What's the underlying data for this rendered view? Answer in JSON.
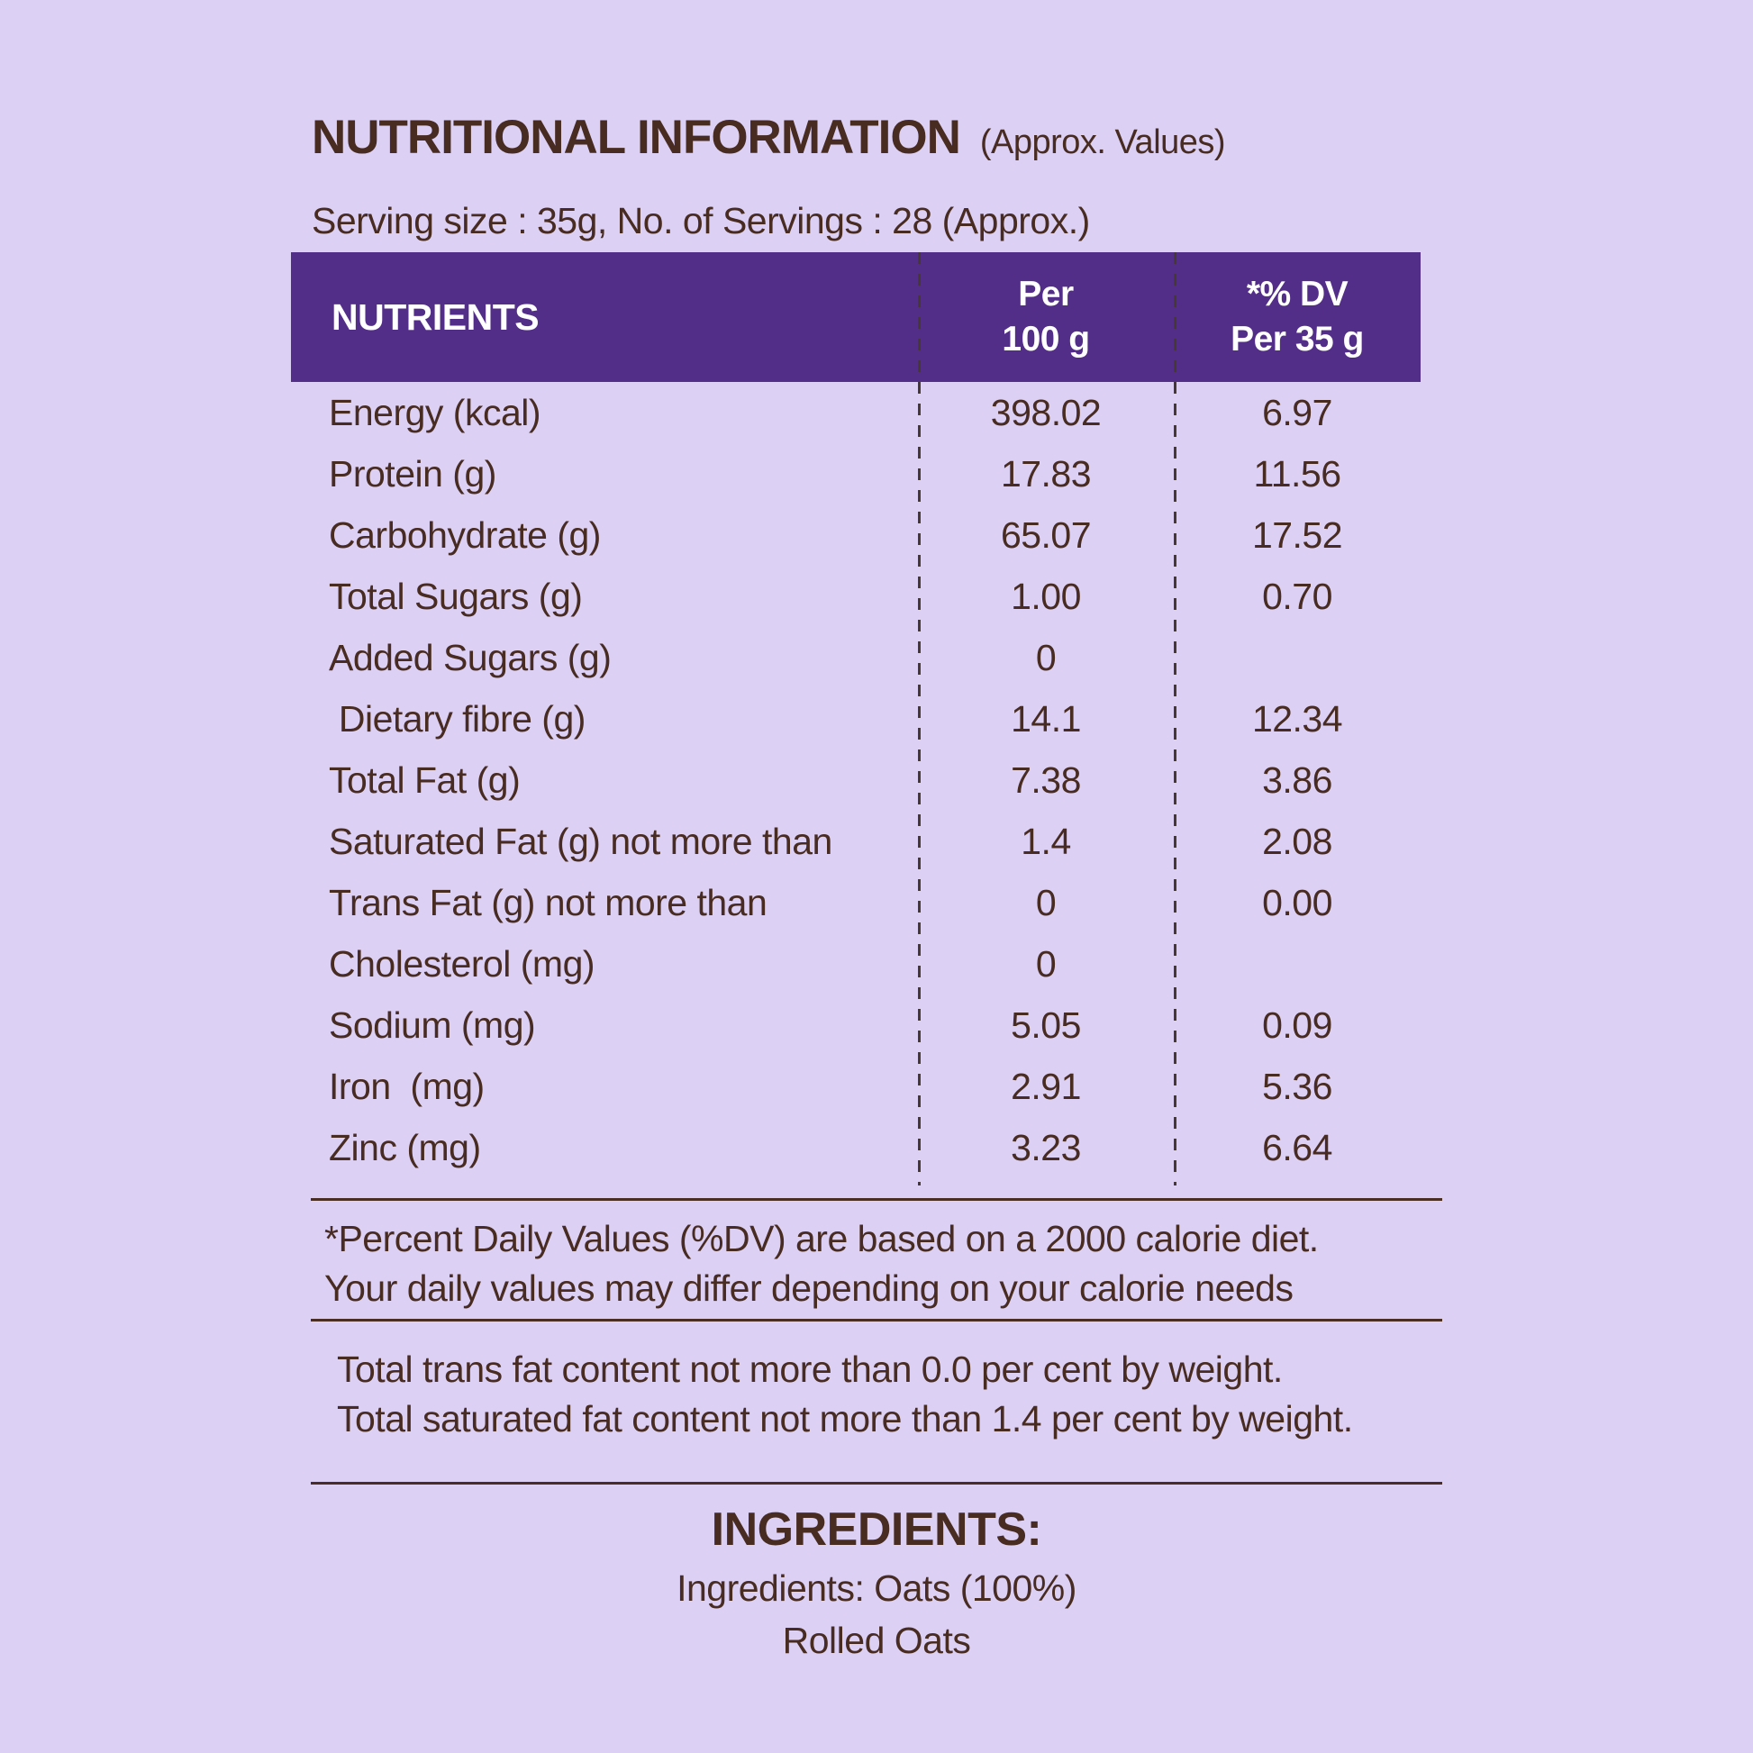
{
  "colors": {
    "background": "#dcd1f5",
    "header_purple": "#532e89",
    "text_brown": "#482b21",
    "header_text": "#ffffff",
    "divider": "#463931"
  },
  "header": {
    "title": "NUTRITIONAL INFORMATION",
    "title_suffix": "(Approx. Values)",
    "serving_line": "Serving size : 35g, No. of Servings : 28 (Approx.)"
  },
  "table": {
    "col_nutrients": "NUTRIENTS",
    "col_per100_line1": "Per",
    "col_per100_line2": "100 g",
    "col_dv_line1": "*% DV",
    "col_dv_line2": "Per 35 g",
    "rows": [
      {
        "label": "Energy (kcal)",
        "per100": "398.02",
        "dv35": "6.97"
      },
      {
        "label": "Protein (g)",
        "per100": "17.83",
        "dv35": "11.56"
      },
      {
        "label": "Carbohydrate (g)",
        "per100": "65.07",
        "dv35": "17.52"
      },
      {
        "label": "Total Sugars (g)",
        "per100": "1.00",
        "dv35": "0.70"
      },
      {
        "label": "Added Sugars (g)",
        "per100": "0",
        "dv35": ""
      },
      {
        "label": " Dietary fibre (g)",
        "per100": "14.1",
        "dv35": "12.34"
      },
      {
        "label": "Total Fat (g)",
        "per100": "7.38",
        "dv35": "3.86"
      },
      {
        "label": "Saturated Fat (g) not more than",
        "per100": "1.4",
        "dv35": "2.08"
      },
      {
        "label": "Trans Fat (g) not more than",
        "per100": "0",
        "dv35": "0.00"
      },
      {
        "label": "Cholesterol (mg)",
        "per100": "0",
        "dv35": ""
      },
      {
        "label": "Sodium (mg)",
        "per100": "5.05",
        "dv35": "0.09"
      },
      {
        "label": "Iron  (mg)",
        "per100": "2.91",
        "dv35": "5.36"
      },
      {
        "label": "Zinc (mg)",
        "per100": "3.23",
        "dv35": "6.64"
      }
    ]
  },
  "footnotes": {
    "dv_line1": "*Percent Daily Values (%DV) are based on a 2000 calorie diet.",
    "dv_line2": "Your daily values may differ depending on your calorie needs",
    "trans_fat": "Total trans fat content not more than 0.0 per cent by weight.",
    "saturated_fat": "Total saturated fat content not more than 1.4 per cent by weight."
  },
  "ingredients": {
    "heading": "INGREDIENTS:",
    "line1": "Ingredients: Oats (100%)",
    "line2": "Rolled Oats"
  }
}
